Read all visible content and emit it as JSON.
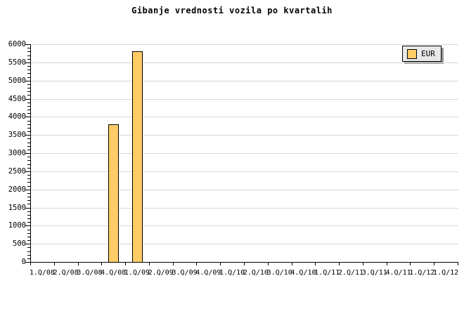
{
  "title": "Gibanje vrednosti vozila po kvartalih",
  "legend": {
    "position": "top-right",
    "items": [
      {
        "label": "EUR",
        "color": "#FFCC66"
      }
    ]
  },
  "colors": {
    "background": "#FFFFFF",
    "bar_fill": "#FFCC66",
    "bar_border": "#000000",
    "grid": "#D8D8D8",
    "axis": "#000000",
    "text": "#000000",
    "legend_bg": "#E8E8E8",
    "legend_shadow": "#999999"
  },
  "chart_data": {
    "type": "bar",
    "title": "Gibanje vrednosti vozila po kvartalih",
    "xlabel": "",
    "ylabel": "",
    "categories": [
      "1.Q/08",
      "2.Q/08",
      "3.Q/08",
      "4.Q/08",
      "1.Q/09",
      "2.Q/09",
      "3.Q/09",
      "4.Q/09",
      "1.Q/10",
      "2.Q/10",
      "3.Q/10",
      "4.Q/10",
      "1.Q/11",
      "2.Q/11",
      "3.Q/11",
      "4.Q/11",
      "1.Q/12",
      "1.Q/12"
    ],
    "series": [
      {
        "name": "EUR",
        "values": [
          null,
          null,
          null,
          3800,
          5800,
          null,
          null,
          null,
          null,
          null,
          null,
          null,
          null,
          null,
          null,
          null,
          null,
          null
        ]
      }
    ],
    "ylim": [
      0,
      6000
    ],
    "ytick_interval": 500,
    "y_minor_interval": 100,
    "ytick_labels": [
      "0",
      "500",
      "1000",
      "1500",
      "2000",
      "2500",
      "3000",
      "3500",
      "4000",
      "4500",
      "5000",
      "5500",
      "6000"
    ],
    "grid": "horizontal-major",
    "legend_position": "top-right"
  }
}
